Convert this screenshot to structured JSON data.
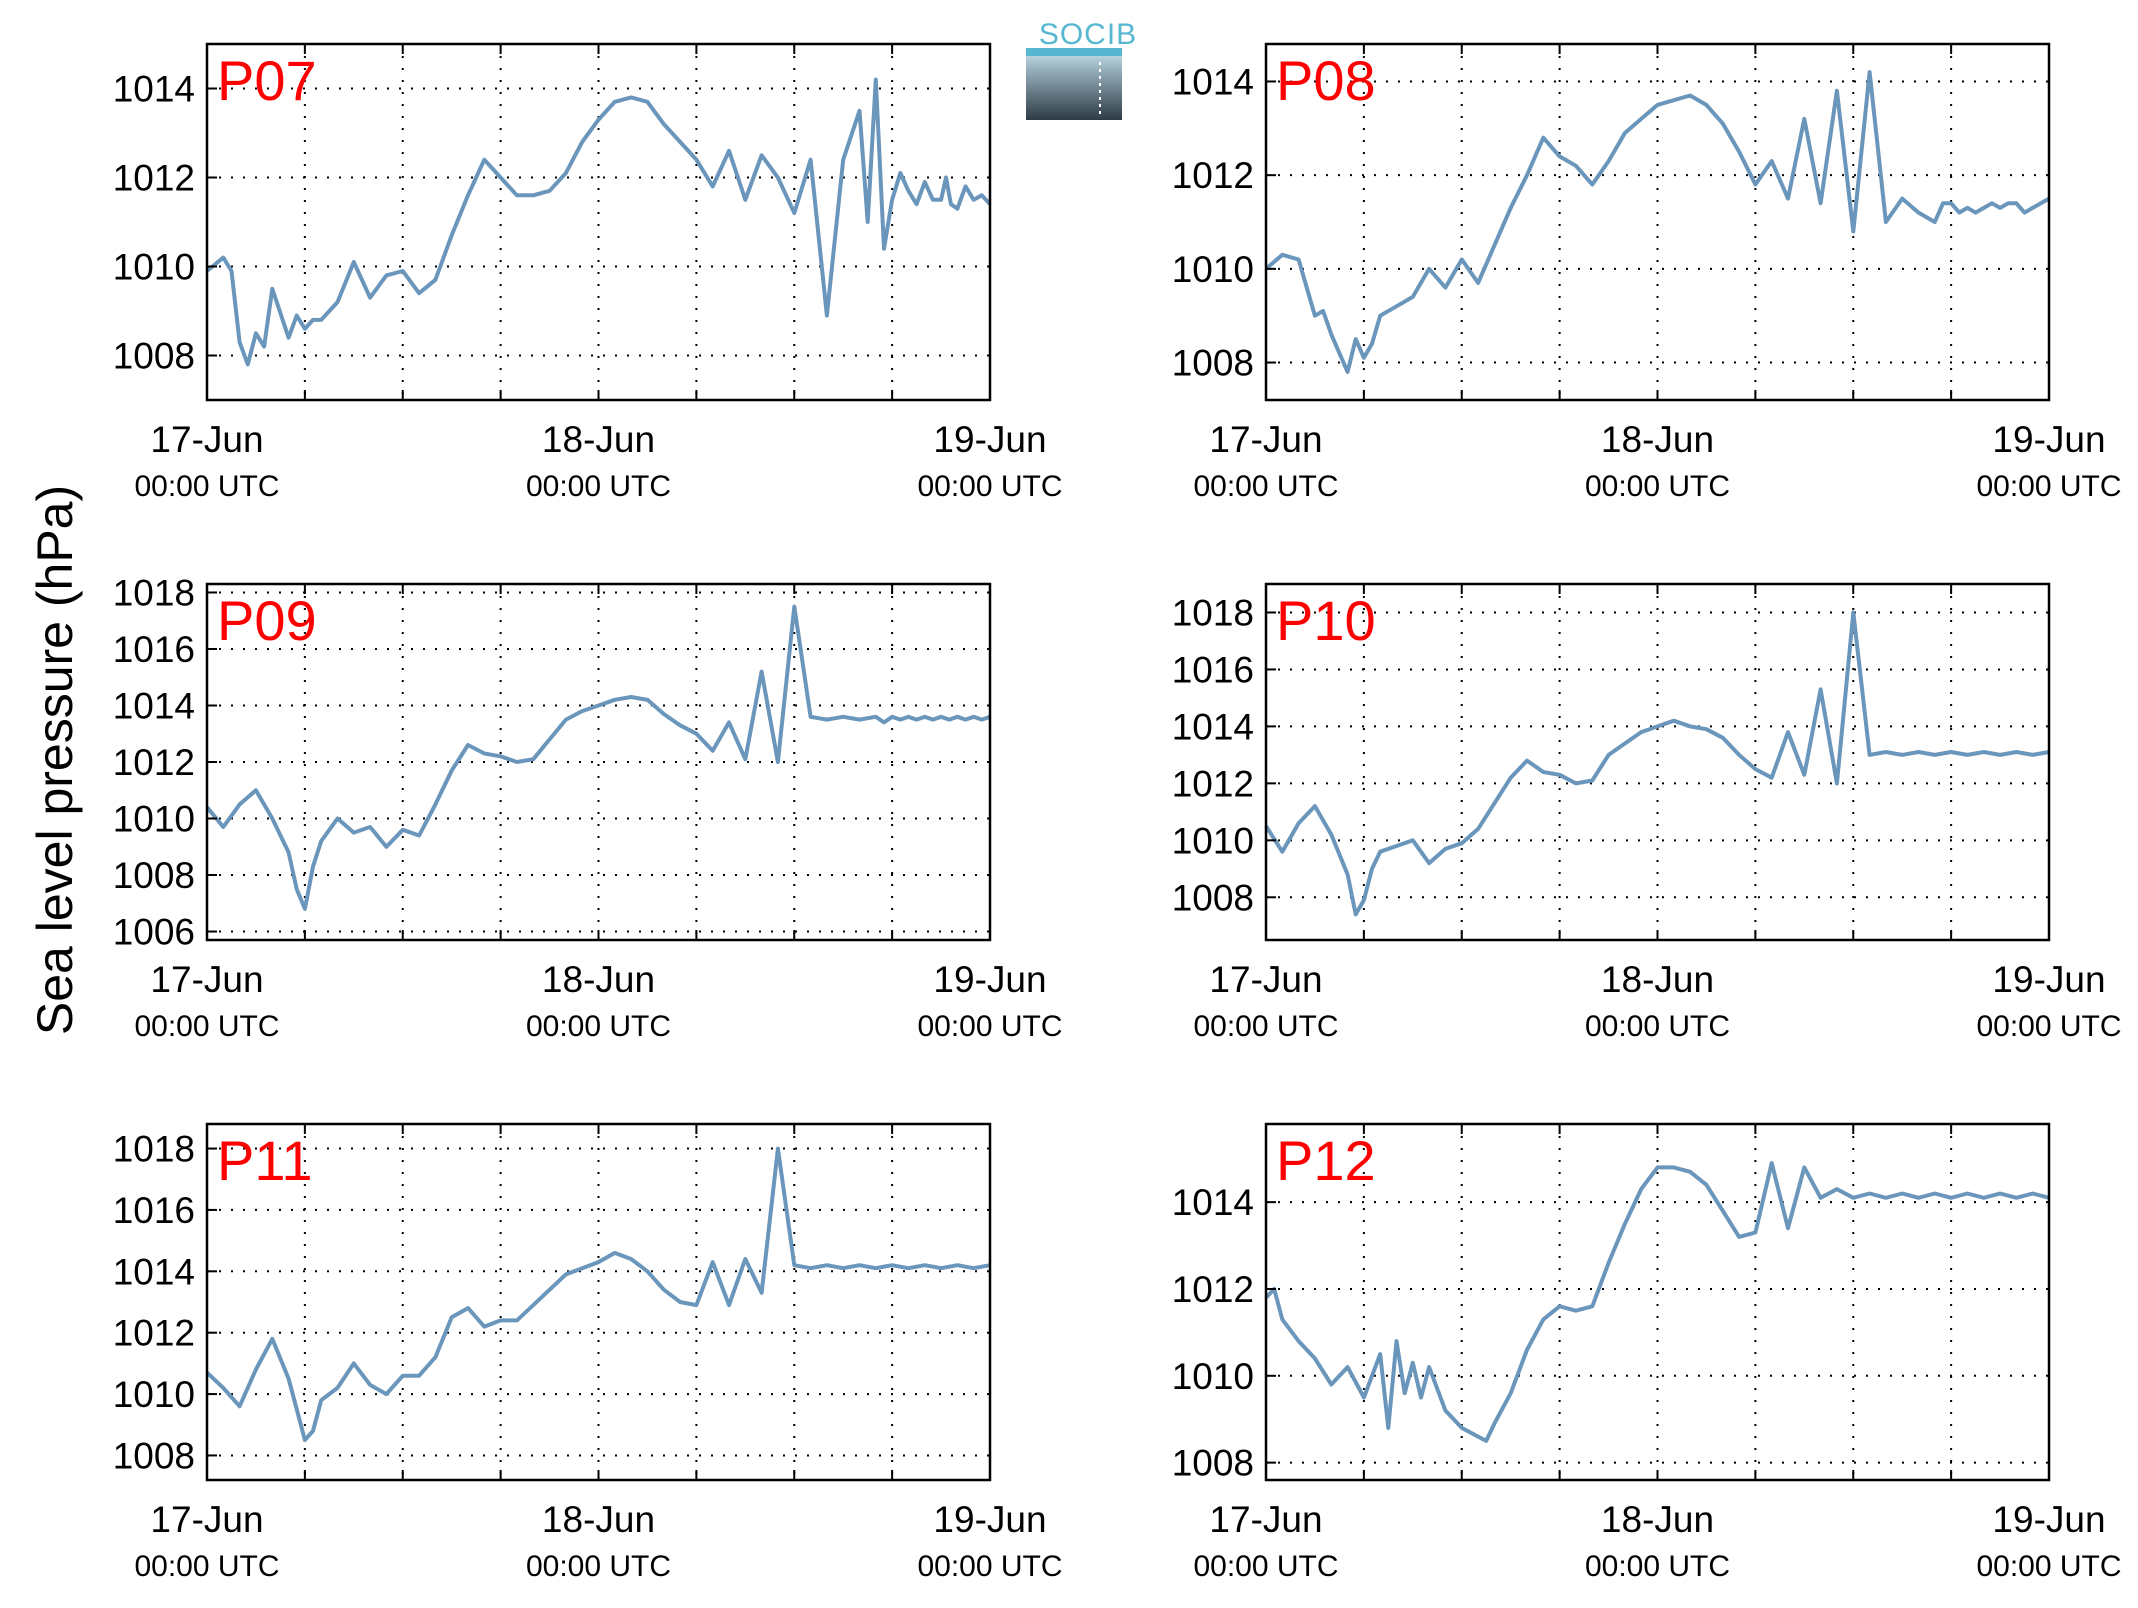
{
  "figure": {
    "ylabel": "Sea level pressure (hPa)",
    "logo_text": "SOCIB"
  },
  "colors": {
    "line": "#6b96bb",
    "station_label": "#ff0000",
    "axes": "#000000",
    "grid": "#000000",
    "logo_top": "#58b7d0",
    "logo_bottom": "#2d3b45"
  },
  "chart_data": [
    {
      "type": "line",
      "station": "P07",
      "xlim": [
        0,
        48
      ],
      "ylim": [
        1007,
        1015
      ],
      "yticks": [
        1008,
        1010,
        1012,
        1014
      ],
      "xticks": [
        0,
        24,
        48
      ],
      "xtick_labels": [
        [
          "17-Jun",
          "00:00 UTC"
        ],
        [
          "18-Jun",
          "00:00 UTC"
        ],
        [
          "19-Jun",
          "00:00 UTC"
        ]
      ],
      "grid": true,
      "x": [
        0,
        1,
        1.5,
        2,
        2.5,
        3,
        3.5,
        4,
        5,
        5.5,
        6,
        6.5,
        7,
        8,
        9,
        10,
        11,
        12,
        13,
        14,
        15,
        16,
        17,
        18,
        19,
        20,
        21,
        22,
        23,
        24,
        25,
        26,
        27,
        28,
        29,
        30,
        31,
        32,
        33,
        34,
        35,
        36,
        37,
        38,
        39,
        40,
        40.5,
        41,
        41.5,
        42,
        42.5,
        43,
        43.5,
        44,
        44.5,
        45,
        45.3,
        45.6,
        46,
        46.5,
        47,
        47.5,
        48
      ],
      "y": [
        1009.9,
        1010.2,
        1009.9,
        1008.3,
        1007.8,
        1008.5,
        1008.2,
        1009.5,
        1008.4,
        1008.9,
        1008.6,
        1008.8,
        1008.8,
        1009.2,
        1010.1,
        1009.3,
        1009.8,
        1009.9,
        1009.4,
        1009.7,
        1010.7,
        1011.6,
        1012.4,
        1012.0,
        1011.6,
        1011.6,
        1011.7,
        1012.1,
        1012.8,
        1013.3,
        1013.7,
        1013.8,
        1013.7,
        1013.2,
        1012.8,
        1012.4,
        1011.8,
        1012.6,
        1011.5,
        1012.5,
        1012.0,
        1011.2,
        1012.4,
        1008.9,
        1012.4,
        1013.5,
        1011.0,
        1014.2,
        1010.4,
        1011.5,
        1012.1,
        1011.7,
        1011.4,
        1011.9,
        1011.5,
        1011.5,
        1012.0,
        1011.4,
        1011.3,
        1011.8,
        1011.5,
        1011.6,
        1011.4
      ]
    },
    {
      "type": "line",
      "station": "P08",
      "xlim": [
        0,
        48
      ],
      "ylim": [
        1007.2,
        1014.8
      ],
      "yticks": [
        1008,
        1010,
        1012,
        1014
      ],
      "xticks": [
        0,
        24,
        48
      ],
      "xtick_labels": [
        [
          "17-Jun",
          "00:00 UTC"
        ],
        [
          "18-Jun",
          "00:00 UTC"
        ],
        [
          "19-Jun",
          "00:00 UTC"
        ]
      ],
      "grid": true,
      "x": [
        0,
        1,
        2,
        3,
        3.5,
        4,
        4.5,
        5,
        5.5,
        6,
        6.5,
        7,
        8,
        9,
        10,
        11,
        12,
        13,
        14,
        15,
        16,
        17,
        18,
        19,
        20,
        21,
        22,
        23,
        24,
        25,
        26,
        27,
        28,
        29,
        30,
        31,
        32,
        33,
        34,
        35,
        36,
        37,
        38,
        39,
        40,
        41,
        41.5,
        42,
        42.5,
        43,
        43.5,
        44,
        44.5,
        45,
        45.5,
        46,
        46.5,
        47,
        47.5,
        48
      ],
      "y": [
        1010.0,
        1010.3,
        1010.2,
        1009.0,
        1009.1,
        1008.6,
        1008.2,
        1007.8,
        1008.5,
        1008.1,
        1008.4,
        1009.0,
        1009.2,
        1009.4,
        1010.0,
        1009.6,
        1010.2,
        1009.7,
        1010.5,
        1011.3,
        1012.0,
        1012.8,
        1012.4,
        1012.2,
        1011.8,
        1012.3,
        1012.9,
        1013.2,
        1013.5,
        1013.6,
        1013.7,
        1013.5,
        1013.1,
        1012.5,
        1011.8,
        1012.3,
        1011.5,
        1013.2,
        1011.4,
        1013.8,
        1010.8,
        1014.2,
        1011.0,
        1011.5,
        1011.2,
        1011.0,
        1011.4,
        1011.4,
        1011.2,
        1011.3,
        1011.2,
        1011.3,
        1011.4,
        1011.3,
        1011.4,
        1011.4,
        1011.2,
        1011.3,
        1011.4,
        1011.5
      ]
    },
    {
      "type": "line",
      "station": "P09",
      "xlim": [
        0,
        48
      ],
      "ylim": [
        1005.7,
        1018.3
      ],
      "yticks": [
        1006,
        1008,
        1010,
        1012,
        1014,
        1016,
        1018
      ],
      "xticks": [
        0,
        24,
        48
      ],
      "xtick_labels": [
        [
          "17-Jun",
          "00:00 UTC"
        ],
        [
          "18-Jun",
          "00:00 UTC"
        ],
        [
          "19-Jun",
          "00:00 UTC"
        ]
      ],
      "grid": true,
      "x": [
        0,
        1,
        2,
        3,
        4,
        5,
        5.5,
        6,
        6.5,
        7,
        8,
        9,
        10,
        11,
        12,
        13,
        14,
        15,
        16,
        17,
        18,
        19,
        20,
        21,
        22,
        23,
        24,
        25,
        26,
        27,
        28,
        29,
        30,
        31,
        32,
        33,
        34,
        35,
        36,
        37,
        38,
        39,
        40,
        41,
        41.5,
        42,
        42.5,
        43,
        43.5,
        44,
        44.5,
        45,
        45.5,
        46,
        46.5,
        47,
        47.5,
        48
      ],
      "y": [
        1010.4,
        1009.7,
        1010.5,
        1011.0,
        1010.0,
        1008.8,
        1007.5,
        1006.8,
        1008.3,
        1009.2,
        1010.0,
        1009.5,
        1009.7,
        1009.0,
        1009.6,
        1009.4,
        1010.5,
        1011.7,
        1012.6,
        1012.3,
        1012.2,
        1012.0,
        1012.1,
        1012.8,
        1013.5,
        1013.8,
        1014.0,
        1014.2,
        1014.3,
        1014.2,
        1013.7,
        1013.3,
        1013.0,
        1012.4,
        1013.4,
        1012.1,
        1015.2,
        1012.0,
        1017.5,
        1013.6,
        1013.5,
        1013.6,
        1013.5,
        1013.6,
        1013.4,
        1013.6,
        1013.5,
        1013.6,
        1013.5,
        1013.6,
        1013.5,
        1013.6,
        1013.5,
        1013.6,
        1013.5,
        1013.6,
        1013.5,
        1013.6
      ]
    },
    {
      "type": "line",
      "station": "P10",
      "xlim": [
        0,
        48
      ],
      "ylim": [
        1006.5,
        1019
      ],
      "yticks": [
        1008,
        1010,
        1012,
        1014,
        1016,
        1018
      ],
      "xticks": [
        0,
        24,
        48
      ],
      "xtick_labels": [
        [
          "17-Jun",
          "00:00 UTC"
        ],
        [
          "18-Jun",
          "00:00 UTC"
        ],
        [
          "19-Jun",
          "00:00 UTC"
        ]
      ],
      "grid": true,
      "x": [
        0,
        1,
        2,
        3,
        4,
        5,
        5.5,
        6,
        6.5,
        7,
        8,
        9,
        10,
        11,
        12,
        13,
        14,
        15,
        16,
        17,
        18,
        19,
        20,
        21,
        22,
        23,
        24,
        25,
        26,
        27,
        28,
        29,
        30,
        31,
        32,
        33,
        34,
        35,
        36,
        37,
        38,
        39,
        40,
        41,
        42,
        43,
        44,
        45,
        46,
        47,
        48
      ],
      "y": [
        1010.5,
        1009.6,
        1010.6,
        1011.2,
        1010.2,
        1008.8,
        1007.4,
        1007.9,
        1009.0,
        1009.6,
        1009.8,
        1010.0,
        1009.2,
        1009.7,
        1009.9,
        1010.4,
        1011.3,
        1012.2,
        1012.8,
        1012.4,
        1012.3,
        1012.0,
        1012.1,
        1013.0,
        1013.4,
        1013.8,
        1014.0,
        1014.2,
        1014.0,
        1013.9,
        1013.6,
        1013.0,
        1012.5,
        1012.2,
        1013.8,
        1012.3,
        1015.3,
        1012.0,
        1018.0,
        1013.0,
        1013.1,
        1013.0,
        1013.1,
        1013.0,
        1013.1,
        1013.0,
        1013.1,
        1013.0,
        1013.1,
        1013.0,
        1013.1
      ]
    },
    {
      "type": "line",
      "station": "P11",
      "xlim": [
        0,
        48
      ],
      "ylim": [
        1007.2,
        1018.8
      ],
      "yticks": [
        1008,
        1010,
        1012,
        1014,
        1016,
        1018
      ],
      "xticks": [
        0,
        24,
        48
      ],
      "xtick_labels": [
        [
          "17-Jun",
          "00:00 UTC"
        ],
        [
          "18-Jun",
          "00:00 UTC"
        ],
        [
          "19-Jun",
          "00:00 UTC"
        ]
      ],
      "grid": true,
      "x": [
        0,
        1,
        2,
        3,
        4,
        5,
        6,
        6.5,
        7,
        8,
        9,
        10,
        11,
        12,
        13,
        14,
        15,
        16,
        17,
        18,
        19,
        20,
        21,
        22,
        23,
        24,
        25,
        26,
        27,
        28,
        29,
        30,
        31,
        32,
        33,
        34,
        35,
        36,
        37,
        38,
        39,
        40,
        41,
        42,
        43,
        44,
        45,
        46,
        47,
        48
      ],
      "y": [
        1010.7,
        1010.2,
        1009.6,
        1010.8,
        1011.8,
        1010.5,
        1008.5,
        1008.8,
        1009.8,
        1010.2,
        1011.0,
        1010.3,
        1010.0,
        1010.6,
        1010.6,
        1011.2,
        1012.5,
        1012.8,
        1012.2,
        1012.4,
        1012.4,
        1012.9,
        1013.4,
        1013.9,
        1014.1,
        1014.3,
        1014.6,
        1014.4,
        1014.0,
        1013.4,
        1013.0,
        1012.9,
        1014.3,
        1012.9,
        1014.4,
        1013.3,
        1018.0,
        1014.2,
        1014.1,
        1014.2,
        1014.1,
        1014.2,
        1014.1,
        1014.2,
        1014.1,
        1014.2,
        1014.1,
        1014.2,
        1014.1,
        1014.2
      ]
    },
    {
      "type": "line",
      "station": "P12",
      "xlim": [
        0,
        48
      ],
      "ylim": [
        1007.6,
        1015.8
      ],
      "yticks": [
        1008,
        1010,
        1012,
        1014
      ],
      "xticks": [
        0,
        24,
        48
      ],
      "xtick_labels": [
        [
          "17-Jun",
          "00:00 UTC"
        ],
        [
          "18-Jun",
          "00:00 UTC"
        ],
        [
          "19-Jun",
          "00:00 UTC"
        ]
      ],
      "grid": true,
      "x": [
        0,
        0.5,
        1,
        2,
        3,
        4,
        5,
        6,
        7,
        7.5,
        8,
        8.5,
        9,
        9.5,
        10,
        11,
        12,
        13,
        13.5,
        14,
        15,
        16,
        17,
        18,
        19,
        20,
        21,
        22,
        23,
        24,
        25,
        26,
        27,
        28,
        29,
        30,
        31,
        32,
        33,
        34,
        35,
        36,
        37,
        38,
        39,
        40,
        41,
        42,
        43,
        44,
        45,
        46,
        47,
        48
      ],
      "y": [
        1011.8,
        1012.0,
        1011.3,
        1010.8,
        1010.4,
        1009.8,
        1010.2,
        1009.5,
        1010.5,
        1008.8,
        1010.8,
        1009.6,
        1010.3,
        1009.5,
        1010.2,
        1009.2,
        1008.8,
        1008.6,
        1008.5,
        1008.9,
        1009.6,
        1010.6,
        1011.3,
        1011.6,
        1011.5,
        1011.6,
        1012.6,
        1013.5,
        1014.3,
        1014.8,
        1014.8,
        1014.7,
        1014.4,
        1013.8,
        1013.2,
        1013.3,
        1014.9,
        1013.4,
        1014.8,
        1014.1,
        1014.3,
        1014.1,
        1014.2,
        1014.1,
        1014.2,
        1014.1,
        1014.2,
        1014.1,
        1014.2,
        1014.1,
        1014.2,
        1014.1,
        1014.2,
        1014.1
      ]
    }
  ]
}
